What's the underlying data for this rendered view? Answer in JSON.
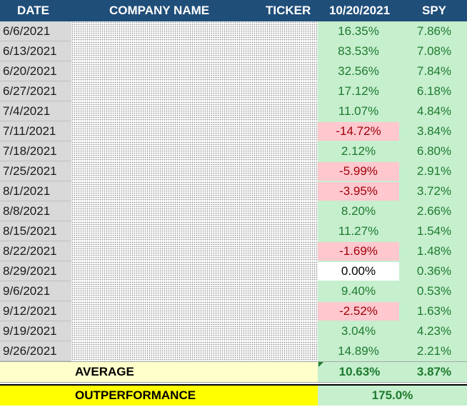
{
  "header": {
    "date": "DATE",
    "company": "COMPANY NAME",
    "ticker": "TICKER",
    "returns_date": "10/20/2021",
    "spy": "SPY"
  },
  "rows": [
    {
      "date": "6/6/2021",
      "ret": "16.35%",
      "status": "positive",
      "spy": "7.86%"
    },
    {
      "date": "6/13/2021",
      "ret": "83.53%",
      "status": "positive",
      "spy": "7.08%"
    },
    {
      "date": "6/20/2021",
      "ret": "32.56%",
      "status": "positive",
      "spy": "7.84%"
    },
    {
      "date": "6/27/2021",
      "ret": "17.12%",
      "status": "positive",
      "spy": "6.18%"
    },
    {
      "date": "7/4/2021",
      "ret": "11.07%",
      "status": "positive",
      "spy": "4.84%"
    },
    {
      "date": "7/11/2021",
      "ret": "-14.72%",
      "status": "negative",
      "spy": "3.84%"
    },
    {
      "date": "7/18/2021",
      "ret": "2.12%",
      "status": "positive",
      "spy": "6.80%"
    },
    {
      "date": "7/25/2021",
      "ret": "-5.99%",
      "status": "negative",
      "spy": "2.91%"
    },
    {
      "date": "8/1/2021",
      "ret": "-3.95%",
      "status": "negative",
      "spy": "3.72%"
    },
    {
      "date": "8/8/2021",
      "ret": "8.20%",
      "status": "positive",
      "spy": "2.66%"
    },
    {
      "date": "8/15/2021",
      "ret": "11.27%",
      "status": "positive",
      "spy": "1.54%"
    },
    {
      "date": "8/22/2021",
      "ret": "-1.69%",
      "status": "negative",
      "spy": "1.48%"
    },
    {
      "date": "8/29/2021",
      "ret": "0.00%",
      "status": "zero",
      "spy": "0.36%"
    },
    {
      "date": "9/6/2021",
      "ret": "9.40%",
      "status": "positive",
      "spy": "0.53%"
    },
    {
      "date": "9/12/2021",
      "ret": "-2.52%",
      "status": "negative",
      "spy": "1.63%"
    },
    {
      "date": "9/19/2021",
      "ret": "3.04%",
      "status": "positive",
      "spy": "4.23%"
    },
    {
      "date": "9/26/2021",
      "ret": "14.89%",
      "status": "positive",
      "spy": "2.21%"
    }
  ],
  "average": {
    "label": "AVERAGE",
    "ret": "10.63%",
    "spy": "3.87%"
  },
  "outperformance": {
    "label": "OUTPERFORMANCE",
    "value": "175.0%"
  },
  "colors": {
    "header_bg": "#1f4e79",
    "positive_bg": "#c6efce",
    "positive_text": "#1e7a2e",
    "negative_bg": "#ffc7ce",
    "negative_text": "#9c0006",
    "average_bg": "#ffffcc",
    "outperformance_bg": "#ffff00",
    "date_bg": "#d9d9d9"
  }
}
